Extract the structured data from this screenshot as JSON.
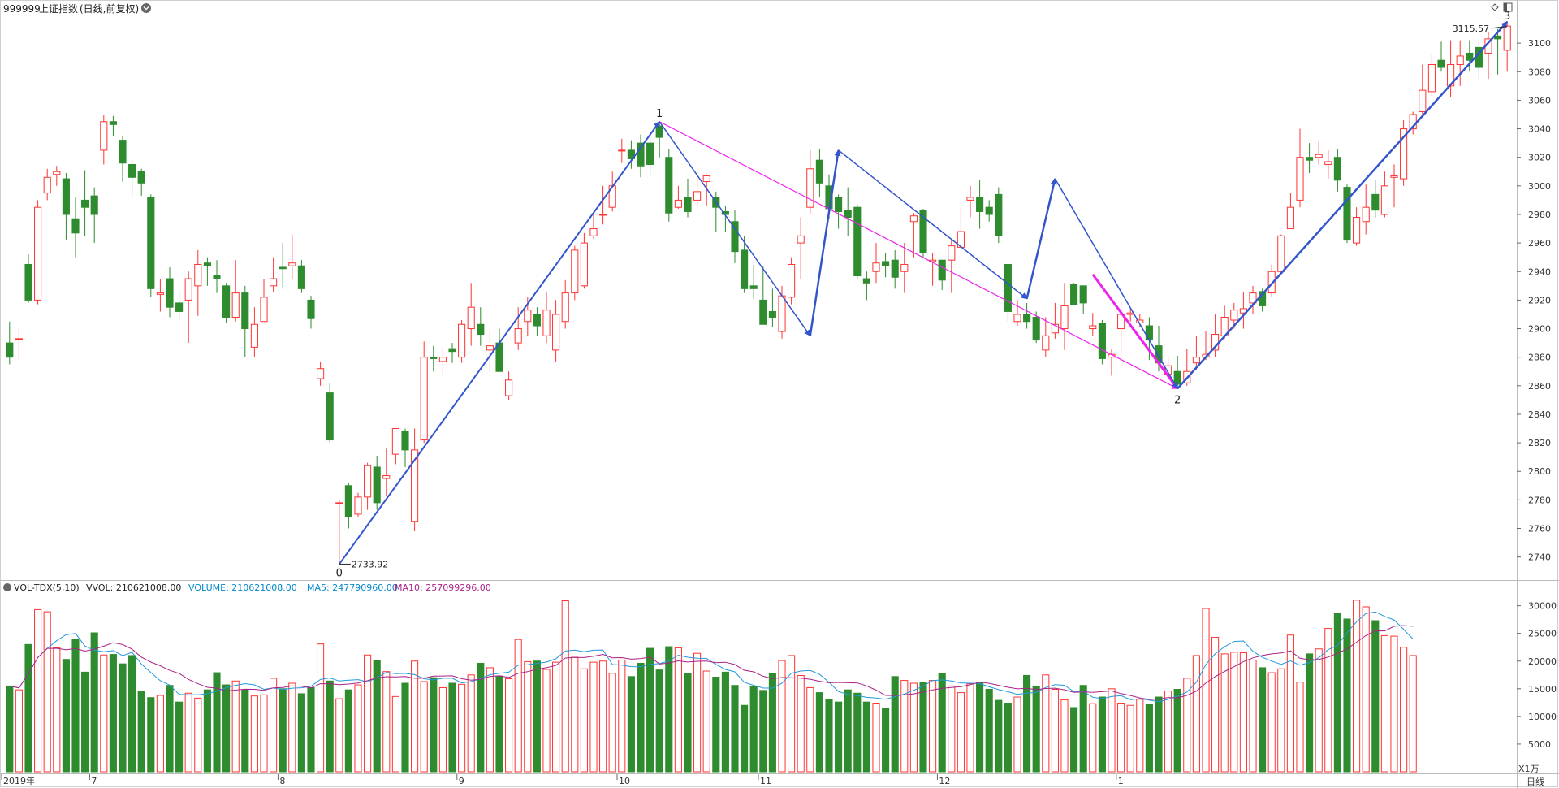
{
  "header": {
    "code": "999999",
    "name": "上证指数",
    "mode": "(日线,前复权)",
    "dropdown_icon": "chevron-down-icon"
  },
  "toolbar_icons": [
    "diamond-icon",
    "panel-toggle-icon"
  ],
  "price_pane": {
    "y_ticks": [
      2740,
      2760,
      2780,
      2800,
      2820,
      2840,
      2860,
      2880,
      2900,
      2920,
      2940,
      2960,
      2980,
      3000,
      3020,
      3040,
      3060,
      3080,
      3100
    ],
    "high_label": "3115.57",
    "low_label": "2733.92",
    "wave_labels": [
      "0",
      "1",
      "2",
      "3"
    ]
  },
  "volume_pane": {
    "indicator": "VOL-TDX(5,10)",
    "vvol": "VVOL: 210621008.00",
    "volume": "VOLUME: 210621008.00",
    "ma5": "MA5: 247790960.00",
    "ma10": "MA10: 257099296.00",
    "y_ticks": [
      5000,
      10000,
      15000,
      20000,
      25000,
      30000
    ],
    "unit": "X1万"
  },
  "x_axis": {
    "labels": [
      {
        "text": "2019年",
        "index": 0
      },
      {
        "text": "7",
        "index": 9
      },
      {
        "text": "8",
        "index": 29
      },
      {
        "text": "9",
        "index": 48
      },
      {
        "text": "10",
        "index": 65
      },
      {
        "text": "11",
        "index": 80
      },
      {
        "text": "12",
        "index": 99
      },
      {
        "text": "1",
        "index": 118
      }
    ],
    "period": "日线"
  },
  "colors": {
    "up": "#ff3333",
    "down": "#2e8b2e",
    "wave_arrow": "#3355cc",
    "trend_line": "#ee22ee",
    "ma5": "#2299dd",
    "ma10": "#aa2288",
    "axis_text": "#333333",
    "volume_title": "#0088cc"
  },
  "chart_data": [
    {
      "type": "candlestick",
      "description_series": "上证指数 日线",
      "x_start": "2019-06",
      "candles": [
        [
          2890,
          2880,
          2905,
          2875
        ],
        [
          2893,
          2893,
          2900,
          2878
        ],
        [
          2945,
          2920,
          2952,
          2918
        ],
        [
          2920,
          2985,
          2990,
          2917
        ],
        [
          2995,
          3006,
          3012,
          2990
        ],
        [
          3008,
          3010,
          3014,
          3000
        ],
        [
          3005,
          2980,
          3009,
          2962
        ],
        [
          2977,
          2967,
          2992,
          2950
        ],
        [
          2990,
          2985,
          3011,
          2965
        ],
        [
          2993,
          2980,
          2999,
          2960
        ],
        [
          3025,
          3045,
          3050,
          3015
        ],
        [
          3045,
          3043,
          3049,
          3035
        ],
        [
          3032,
          3016,
          3035,
          3003
        ],
        [
          3015,
          3006,
          3018,
          2992
        ],
        [
          3010,
          3002,
          3012,
          2993
        ],
        [
          2992,
          2928,
          2994,
          2922
        ],
        [
          2924,
          2925,
          2935,
          2912
        ],
        [
          2935,
          2915,
          2943,
          2908
        ],
        [
          2918,
          2912,
          2926,
          2906
        ],
        [
          2920,
          2935,
          2940,
          2890
        ],
        [
          2930,
          2945,
          2955,
          2909
        ],
        [
          2946,
          2944,
          2950,
          2930
        ],
        [
          2937,
          2935,
          2948,
          2925
        ],
        [
          2930,
          2908,
          2932,
          2904
        ],
        [
          2908,
          2925,
          2948,
          2905
        ],
        [
          2925,
          2900,
          2930,
          2880
        ],
        [
          2887,
          2903,
          2915,
          2880
        ],
        [
          2905,
          2922,
          2935,
          2905
        ],
        [
          2930,
          2935,
          2950,
          2926
        ],
        [
          2943,
          2942,
          2960,
          2929
        ],
        [
          2944,
          2946,
          2966,
          2935
        ],
        [
          2944,
          2928,
          2948,
          2925
        ],
        [
          2920,
          2907,
          2923,
          2900
        ],
        [
          2865,
          2872,
          2877,
          2860
        ],
        [
          2855,
          2822,
          2862,
          2820
        ],
        [
          2778,
          2778,
          2780,
          2735
        ],
        [
          2790,
          2768,
          2792,
          2760
        ],
        [
          2770,
          2782,
          2785,
          2768
        ],
        [
          2782,
          2804,
          2806,
          2773
        ],
        [
          2803,
          2778,
          2811,
          2773
        ],
        [
          2795,
          2797,
          2816,
          2783
        ],
        [
          2812,
          2830,
          2830,
          2805
        ],
        [
          2828,
          2815,
          2830,
          2803
        ],
        [
          2765,
          2815,
          2830,
          2758
        ],
        [
          2822,
          2880,
          2891,
          2820
        ],
        [
          2880,
          2879,
          2888,
          2870
        ],
        [
          2877,
          2880,
          2887,
          2868
        ],
        [
          2886,
          2884,
          2890,
          2876
        ],
        [
          2880,
          2903,
          2906,
          2876
        ],
        [
          2900,
          2915,
          2932,
          2888
        ],
        [
          2903,
          2896,
          2915,
          2888
        ],
        [
          2885,
          2888,
          2898,
          2870
        ],
        [
          2890,
          2870,
          2900,
          2880
        ],
        [
          2853,
          2864,
          2870,
          2850
        ],
        [
          2890,
          2900,
          2915,
          2885
        ],
        [
          2905,
          2913,
          2922,
          2895
        ],
        [
          2910,
          2902,
          2915,
          2895
        ],
        [
          2895,
          2913,
          2926,
          2890
        ],
        [
          2885,
          2910,
          2920,
          2877
        ],
        [
          2905,
          2925,
          2934,
          2900
        ],
        [
          2925,
          2955,
          2958,
          2920
        ],
        [
          2930,
          2960,
          2967,
          2928
        ],
        [
          2965,
          2970,
          2980,
          2963
        ],
        [
          2980,
          2980,
          3000,
          2973
        ],
        [
          2985,
          3000,
          3010,
          2982
        ],
        [
          3025,
          3025,
          3033,
          3016
        ],
        [
          3025,
          3019,
          3032,
          3012
        ],
        [
          3030,
          3014,
          3036,
          3006
        ],
        [
          3030,
          3015,
          3037,
          3008
        ],
        [
          3042,
          3034,
          3045,
          3020
        ],
        [
          3020,
          2981,
          3026,
          2975
        ],
        [
          2985,
          2990,
          3000,
          2984
        ],
        [
          2992,
          2982,
          3005,
          2978
        ],
        [
          2990,
          2996,
          3012,
          2985
        ],
        [
          3003,
          3007,
          3008,
          2986
        ],
        [
          2992,
          2985,
          2996,
          2968
        ],
        [
          2982,
          2980,
          2986,
          2968
        ],
        [
          2975,
          2954,
          2983,
          2946
        ],
        [
          2955,
          2928,
          2965,
          2925
        ],
        [
          2930,
          2928,
          2945,
          2921
        ],
        [
          2920,
          2903,
          2944,
          2908
        ],
        [
          2912,
          2908,
          2928,
          2901
        ],
        [
          2898,
          2923,
          2930,
          2893
        ],
        [
          2922,
          2945,
          2950,
          2917
        ],
        [
          2960,
          2965,
          2978,
          2935
        ],
        [
          2985,
          3012,
          3025,
          2980
        ],
        [
          3018,
          3002,
          3026,
          2992
        ],
        [
          3000,
          2984,
          3008,
          2977
        ],
        [
          2992,
          2982,
          2994,
          2970
        ],
        [
          2983,
          2978,
          2999,
          2965
        ],
        [
          2985,
          2937,
          2987,
          2935
        ],
        [
          2935,
          2932,
          2940,
          2920
        ],
        [
          2940,
          2946,
          2960,
          2932
        ],
        [
          2947,
          2944,
          2953,
          2936
        ],
        [
          2948,
          2936,
          2955,
          2928
        ],
        [
          2940,
          2945,
          2960,
          2925
        ],
        [
          2975,
          2979,
          2981,
          2950
        ],
        [
          2983,
          2953,
          2984,
          2950
        ],
        [
          2947,
          2948,
          2953,
          2930
        ],
        [
          2948,
          2934,
          2945,
          2927
        ],
        [
          2948,
          2958,
          2962,
          2925
        ],
        [
          2957,
          2968,
          2985,
          2957
        ],
        [
          2990,
          2992,
          3000,
          2978
        ],
        [
          2992,
          2982,
          3004,
          2970
        ],
        [
          2985,
          2980,
          2990,
          2975
        ],
        [
          2994,
          2965,
          2999,
          2960
        ],
        [
          2945,
          2912,
          2944,
          2905
        ],
        [
          2905,
          2910,
          2920,
          2902
        ],
        [
          2910,
          2905,
          2918,
          2900
        ],
        [
          2908,
          2892,
          2912,
          2890
        ],
        [
          2885,
          2895,
          2908,
          2880
        ],
        [
          2897,
          2903,
          2918,
          2893
        ],
        [
          2900,
          2916,
          2932,
          2885
        ],
        [
          2931,
          2917,
          2932,
          2920
        ],
        [
          2930,
          2918,
          2927,
          2910
        ],
        [
          2900,
          2902,
          2911,
          2895
        ],
        [
          2904,
          2879,
          2906,
          2875
        ],
        [
          2880,
          2882,
          2886,
          2867
        ],
        [
          2900,
          2910,
          2920,
          2880
        ],
        [
          2910,
          2911,
          2914,
          2905
        ],
        [
          2904,
          2906,
          2910,
          2901
        ],
        [
          2902,
          2892,
          2908,
          2878
        ],
        [
          2888,
          2876,
          2902,
          2870
        ],
        [
          2868,
          2874,
          2880,
          2864
        ],
        [
          2870,
          2861,
          2881,
          2858
        ],
        [
          2862,
          2870,
          2886,
          2860
        ],
        [
          2876,
          2880,
          2895,
          2871
        ],
        [
          2880,
          2882,
          2898,
          2878
        ],
        [
          2885,
          2896,
          2910,
          2880
        ],
        [
          2895,
          2908,
          2916,
          2893
        ],
        [
          2906,
          2913,
          2918,
          2900
        ],
        [
          2911,
          2914,
          2926,
          2900
        ],
        [
          2918,
          2925,
          2930,
          2910
        ],
        [
          2926,
          2916,
          2928,
          2912
        ],
        [
          2925,
          2940,
          2945,
          2922
        ],
        [
          2940,
          2965,
          2966,
          2939
        ],
        [
          2970,
          2985,
          2995,
          2970
        ],
        [
          2990,
          3020,
          3040,
          2985
        ],
        [
          3020,
          3018,
          3030,
          3009
        ],
        [
          3020,
          3022,
          3031,
          3015
        ],
        [
          3015,
          3017,
          3025,
          3005
        ],
        [
          3020,
          3004,
          3026,
          2996
        ],
        [
          2999,
          2962,
          3001,
          2960
        ],
        [
          2960,
          2978,
          2985,
          2958
        ],
        [
          2975,
          2985,
          3001,
          2966
        ],
        [
          2994,
          2983,
          3004,
          2978
        ],
        [
          2980,
          3000,
          3010,
          2978
        ],
        [
          3006,
          3007,
          3015,
          2985
        ],
        [
          3005,
          3040,
          3046,
          3000
        ],
        [
          3040,
          3050,
          3052,
          3036
        ],
        [
          3052,
          3067,
          3085,
          3050
        ],
        [
          3066,
          3085,
          3092,
          3063
        ],
        [
          3088,
          3083,
          3101,
          3080
        ],
        [
          3070,
          3085,
          3102,
          3062
        ],
        [
          3085,
          3091,
          3102,
          3070
        ],
        [
          3093,
          3088,
          3102,
          3080
        ],
        [
          3097,
          3083,
          3101,
          3075
        ],
        [
          3093,
          3103,
          3108,
          3075
        ],
        [
          3105,
          3103,
          3110,
          3078
        ],
        [
          3095,
          3112,
          3115,
          3080
        ]
      ],
      "y_range": [
        2725,
        3120
      ],
      "waves": [
        {
          "label": "0",
          "value": 2733.92
        },
        {
          "label": "1",
          "value": 3042
        },
        {
          "label": "2",
          "value": 2860
        },
        {
          "label": "3",
          "value": 3115.57
        }
      ]
    },
    {
      "type": "bar",
      "series": [
        {
          "name": "VOLUME",
          "unit": "万"
        },
        {
          "name": "MA5"
        },
        {
          "name": "MA10"
        }
      ],
      "y_range": [
        0,
        32000
      ],
      "volumes": [
        15500,
        14800,
        23000,
        29300,
        28900,
        22400,
        20300,
        24000,
        18000,
        25100,
        21100,
        21200,
        19500,
        21000,
        14500,
        13400,
        13800,
        15600,
        12600,
        14200,
        13300,
        14800,
        17900,
        15700,
        16400,
        14800,
        13700,
        13900,
        16900,
        15000,
        16000,
        14100,
        15200,
        23100,
        16400,
        13200,
        14800,
        15700,
        21100,
        20100,
        18100,
        13600,
        16000,
        20000,
        16300,
        17000,
        15200,
        16000,
        15800,
        17500,
        19600,
        18800,
        17300,
        16800,
        23900,
        19900,
        20000,
        18500,
        19800,
        30900,
        20700,
        18600,
        19800,
        20000,
        17800,
        20200,
        17200,
        19600,
        22300,
        18400,
        22600,
        22400,
        17800,
        21400,
        18200,
        17100,
        18000,
        15600,
        12000,
        15400,
        14700,
        17800,
        20100,
        21000,
        17400,
        15200,
        14300,
        13000,
        12600,
        14800,
        14200,
        12600,
        12400,
        11500,
        17200,
        16500,
        16000,
        16200,
        16500,
        17800,
        15500,
        14300,
        15900,
        16200,
        14900,
        12900,
        12400,
        13500,
        17400,
        15400,
        17500,
        14900,
        13000,
        11600,
        15600,
        12300,
        13500,
        15000,
        12400,
        12000,
        13100,
        12200,
        13500,
        14600,
        14900,
        16900,
        21000,
        29500,
        24300,
        21300,
        21600,
        21500,
        20200,
        18800,
        17900,
        18600,
        24700,
        16200,
        21300,
        22200,
        25900,
        28700,
        27600,
        31000,
        29800,
        27300,
        24600,
        24500,
        22500,
        21000
      ]
    }
  ]
}
